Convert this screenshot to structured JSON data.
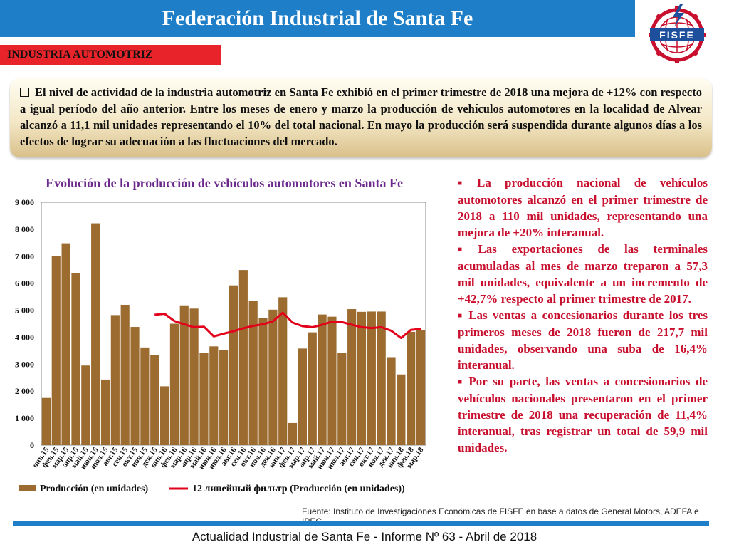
{
  "header": {
    "title": "Federación Industrial de Santa Fe",
    "logo_text": "FISFE"
  },
  "section": {
    "label": "INDUSTRIA AUTOMOTRIZ"
  },
  "intro": {
    "text": "El nivel de actividad de la industria automotriz en Santa Fe exhibió en el primer trimestre de 2018 una mejora de +12% con respecto a igual período del año anterior. Entre los meses de enero y marzo la producción de vehículos automotores en la localidad de Alvear alcanzó a 11,1 mil unidades representando el 10% del total nacional. En mayo la producción será suspendida durante algunos días a los efectos de lograr su adecuación a las fluctuaciones del mercado."
  },
  "bullets": [
    "La producción nacional de vehículos automotores alcanzó en el primer trimestre de 2018 a 110 mil unidades, representando una mejora de +20% interanual.",
    "Las exportaciones de las terminales acumuladas al mes de marzo treparon a 57,3 mil unidades, equivalente a un incremento de +42,7% respecto al primer trimestre de 2017.",
    "Las ventas a concesionarios durante los tres primeros meses de 2018 fueron de 217,7 mil unidades, observando una suba de 16,4% interanual.",
    "Por su parte, las ventas a concesionarios de vehículos nacionales presentaron en el primer trimestre de 2018 una recuperación de 11,4% interanual, tras registrar un total de 59,9 mil unidades."
  ],
  "source": "Fuente: Instituto de Investigaciones Económicas de FISFE en base a datos de General Motors, ADEFA e IPEC.",
  "footer": "Actualidad Industrial de Santa Fe - Informe Nº 63 - Abril de 2018",
  "colors": {
    "header": "#1e7fc8",
    "section_tag": "#e8232a",
    "bars": "#9c6b30",
    "trend": "#e3001b",
    "chart_title": "#6b2a8c",
    "bullets_text": "#c8102e"
  },
  "chart_data": {
    "type": "bar",
    "title": "Evolución de la producción de vehículos automotores en Santa Fe",
    "ylim": [
      0,
      9000
    ],
    "y_ticks": [
      "0",
      "1 000",
      "2 000",
      "3 000",
      "4 000",
      "5 000",
      "6 000",
      "7 000",
      "8 000",
      "9 000"
    ],
    "categories": [
      "янв.15",
      "фев.15",
      "мар.15",
      "апр.15",
      "май.15",
      "июн.15",
      "июл.15",
      "авг.15",
      "сен.15",
      "окт.15",
      "ноя.15",
      "дек.15",
      "янв.16",
      "фев.16",
      "мар.16",
      "апр.16",
      "май.16",
      "июн.16",
      "июл.16",
      "авг.16",
      "сен.16",
      "окт.16",
      "ноя.16",
      "дек.16",
      "янв.17",
      "фев.17",
      "мар.17",
      "апр.17",
      "май.17",
      "июн.17",
      "июл.17",
      "авг.17",
      "сен.17",
      "окт.17",
      "ноя.17",
      "дек.17",
      "янв.18",
      "фев.18",
      "мар.18"
    ],
    "series": [
      {
        "name": "Producción (en unidades)",
        "type": "bar",
        "values": [
          1750,
          7020,
          7480,
          6380,
          2950,
          8220,
          2430,
          4820,
          5200,
          4380,
          3620,
          3340,
          2180,
          4500,
          5180,
          5060,
          3420,
          3660,
          3530,
          5920,
          6490,
          5350,
          4700,
          5020,
          5480,
          820,
          3580,
          4180,
          4840,
          4760,
          3410,
          5040,
          4940,
          4950,
          4950,
          3260,
          2620,
          4200,
          4260
        ]
      },
      {
        "name": "12 линейный фильтр (Producción (en unidades))",
        "type": "line",
        "values": [
          null,
          null,
          null,
          null,
          null,
          null,
          null,
          null,
          null,
          null,
          null,
          4830,
          4870,
          4600,
          4480,
          4370,
          4390,
          4030,
          4130,
          4220,
          4330,
          4420,
          4480,
          4590,
          4910,
          4540,
          4410,
          4370,
          4460,
          4580,
          4560,
          4460,
          4370,
          4340,
          4370,
          4240,
          3970,
          4270,
          4310
        ]
      }
    ],
    "legend_position": "bottom",
    "grid": false
  }
}
